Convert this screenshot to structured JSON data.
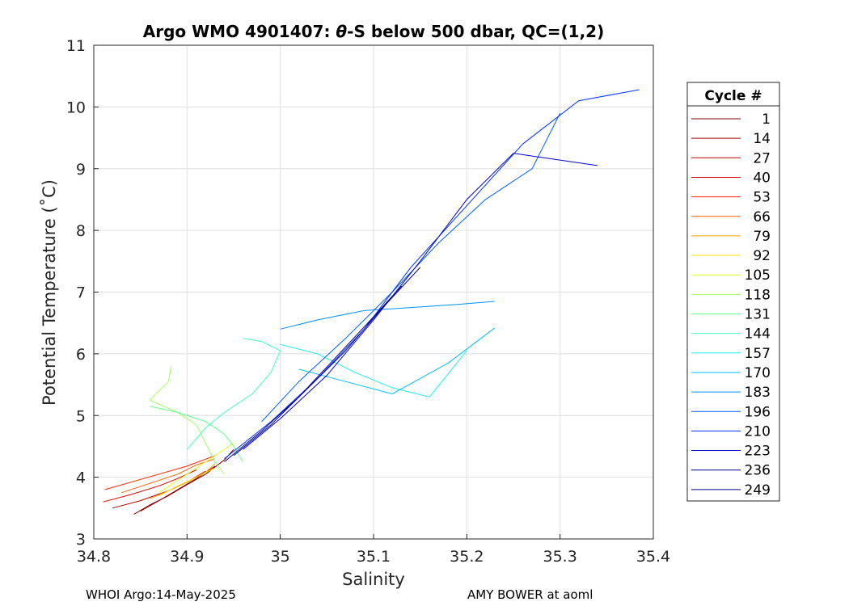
{
  "chart_data": {
    "type": "line",
    "title_left": "Argo WMO 4901407: ",
    "title_theta": "θ",
    "title_right": "-S below 500 dbar,  QC=(1,2)",
    "xlabel": "Salinity",
    "ylabel": "Potential Temperature (˚C)",
    "xlim": [
      34.8,
      35.4
    ],
    "ylim": [
      3,
      11
    ],
    "x_ticks": [
      "34.8",
      "34.9",
      "35",
      "35.1",
      "35.2",
      "35.3",
      "35.4"
    ],
    "y_ticks": [
      "3",
      "4",
      "5",
      "6",
      "7",
      "8",
      "9",
      "10",
      "11"
    ],
    "grid": true,
    "legend_title": "Cycle #",
    "legend_position": "right-outside",
    "legend": [
      {
        "label": "1",
        "color": "#800000"
      },
      {
        "label": "14",
        "color": "#a00000"
      },
      {
        "label": "27",
        "color": "#c00000"
      },
      {
        "label": "40",
        "color": "#e00000"
      },
      {
        "label": "53",
        "color": "#ff2000"
      },
      {
        "label": "66",
        "color": "#ff6000"
      },
      {
        "label": "79",
        "color": "#ffa000"
      },
      {
        "label": "92",
        "color": "#ffe000"
      },
      {
        "label": "105",
        "color": "#e0ff20"
      },
      {
        "label": "118",
        "color": "#a0ff60"
      },
      {
        "label": "131",
        "color": "#60ff90"
      },
      {
        "label": "144",
        "color": "#40ffc0"
      },
      {
        "label": "157",
        "color": "#20f0f0"
      },
      {
        "label": "170",
        "color": "#00c0ff"
      },
      {
        "label": "183",
        "color": "#0090ff"
      },
      {
        "label": "196",
        "color": "#0060ff"
      },
      {
        "label": "210",
        "color": "#0030ff"
      },
      {
        "label": "223",
        "color": "#0000d0"
      },
      {
        "label": "236",
        "color": "#0000a0"
      },
      {
        "label": "249",
        "color": "#000090"
      }
    ],
    "series": [
      {
        "cycle": "1",
        "color": "#800000",
        "points": [
          [
            34.843,
            3.4
          ],
          [
            34.86,
            3.55
          ],
          [
            34.88,
            3.7
          ],
          [
            34.9,
            3.88
          ],
          [
            34.92,
            4.05
          ],
          [
            34.94,
            4.28
          ],
          [
            34.95,
            4.45
          ]
        ]
      },
      {
        "cycle": "14",
        "color": "#a00000",
        "points": [
          [
            34.85,
            3.45
          ],
          [
            34.87,
            3.62
          ],
          [
            34.89,
            3.8
          ],
          [
            34.91,
            3.98
          ],
          [
            34.93,
            4.18
          ]
        ]
      },
      {
        "cycle": "27",
        "color": "#c00000",
        "points": [
          [
            34.82,
            3.5
          ],
          [
            34.85,
            3.62
          ],
          [
            34.88,
            3.78
          ],
          [
            34.9,
            3.92
          ],
          [
            34.92,
            4.1
          ]
        ]
      },
      {
        "cycle": "40",
        "color": "#e00000",
        "points": [
          [
            34.81,
            3.6
          ],
          [
            34.84,
            3.72
          ],
          [
            34.87,
            3.86
          ],
          [
            34.89,
            3.98
          ],
          [
            34.91,
            4.12
          ]
        ]
      },
      {
        "cycle": "53",
        "color": "#ff2000",
        "points": [
          [
            34.812,
            3.8
          ],
          [
            34.84,
            3.92
          ],
          [
            34.87,
            4.05
          ],
          [
            34.9,
            4.18
          ],
          [
            34.93,
            4.35
          ]
        ]
      },
      {
        "cycle": "66",
        "color": "#ff6000",
        "points": [
          [
            34.83,
            3.75
          ],
          [
            34.86,
            3.9
          ],
          [
            34.89,
            4.05
          ],
          [
            34.91,
            4.2
          ],
          [
            34.93,
            4.3
          ]
        ]
      },
      {
        "cycle": "79",
        "color": "#ffa000",
        "points": [
          [
            34.86,
            3.65
          ],
          [
            34.88,
            3.78
          ],
          [
            34.9,
            3.92
          ],
          [
            34.92,
            4.08
          ],
          [
            34.93,
            4.22
          ]
        ]
      },
      {
        "cycle": "92",
        "color": "#ffe000",
        "points": [
          [
            34.87,
            3.7
          ],
          [
            34.89,
            3.86
          ],
          [
            34.91,
            4.0
          ],
          [
            34.93,
            4.15
          ]
        ]
      },
      {
        "cycle": "105",
        "color": "#e0ff20",
        "points": [
          [
            34.87,
            3.75
          ],
          [
            34.89,
            3.95
          ],
          [
            34.91,
            4.15
          ],
          [
            34.93,
            4.35
          ],
          [
            34.95,
            4.55
          ]
        ]
      },
      {
        "cycle": "118",
        "color": "#a0ff60",
        "points": [
          [
            34.883,
            5.8
          ],
          [
            34.88,
            5.55
          ],
          [
            34.87,
            5.4
          ],
          [
            34.86,
            5.25
          ],
          [
            34.89,
            5.05
          ],
          [
            34.91,
            4.85
          ],
          [
            34.92,
            4.55
          ],
          [
            34.93,
            4.25
          ],
          [
            34.94,
            4.05
          ]
        ]
      },
      {
        "cycle": "131",
        "color": "#60ff90",
        "points": [
          [
            34.86,
            5.15
          ],
          [
            34.89,
            5.05
          ],
          [
            34.92,
            4.9
          ],
          [
            34.94,
            4.7
          ],
          [
            34.95,
            4.5
          ],
          [
            34.96,
            4.25
          ]
        ]
      },
      {
        "cycle": "144",
        "color": "#40ffc0",
        "points": [
          [
            34.96,
            6.25
          ],
          [
            34.98,
            6.2
          ],
          [
            35.0,
            6.05
          ],
          [
            34.99,
            5.7
          ],
          [
            34.97,
            5.35
          ],
          [
            34.94,
            5.05
          ],
          [
            34.92,
            4.8
          ],
          [
            34.9,
            4.45
          ]
        ]
      },
      {
        "cycle": "157",
        "color": "#20f0f0",
        "points": [
          [
            35.0,
            6.15
          ],
          [
            35.04,
            6.0
          ],
          [
            35.08,
            5.7
          ],
          [
            35.12,
            5.45
          ],
          [
            35.16,
            5.3
          ],
          [
            35.2,
            6.05
          ]
        ]
      },
      {
        "cycle": "170",
        "color": "#00c0ff",
        "points": [
          [
            35.02,
            5.75
          ],
          [
            35.07,
            5.55
          ],
          [
            35.12,
            5.35
          ],
          [
            35.18,
            5.85
          ],
          [
            35.23,
            6.42
          ]
        ]
      },
      {
        "cycle": "183",
        "color": "#0090ff",
        "points": [
          [
            35.0,
            6.4
          ],
          [
            35.04,
            6.55
          ],
          [
            35.09,
            6.7
          ],
          [
            35.14,
            6.75
          ],
          [
            35.19,
            6.8
          ],
          [
            35.23,
            6.85
          ]
        ]
      },
      {
        "cycle": "196",
        "color": "#0060ff",
        "points": [
          [
            34.98,
            4.9
          ],
          [
            35.02,
            5.55
          ],
          [
            35.07,
            6.25
          ],
          [
            35.12,
            7.0
          ],
          [
            35.17,
            7.8
          ],
          [
            35.22,
            8.5
          ],
          [
            35.27,
            9.0
          ],
          [
            35.3,
            9.9
          ]
        ]
      },
      {
        "cycle": "210",
        "color": "#0030ff",
        "points": [
          [
            34.94,
            4.3
          ],
          [
            34.99,
            4.9
          ],
          [
            35.04,
            5.6
          ],
          [
            35.09,
            6.4
          ],
          [
            35.14,
            7.4
          ],
          [
            35.2,
            8.4
          ],
          [
            35.26,
            9.4
          ],
          [
            35.32,
            10.1
          ],
          [
            35.385,
            10.28
          ]
        ]
      },
      {
        "cycle": "223",
        "color": "#0000d0",
        "points": [
          [
            34.96,
            4.45
          ],
          [
            35.0,
            4.95
          ],
          [
            35.05,
            5.65
          ],
          [
            35.1,
            6.55
          ],
          [
            35.15,
            7.5
          ],
          [
            35.2,
            8.5
          ],
          [
            35.25,
            9.25
          ],
          [
            35.34,
            9.05
          ]
        ]
      },
      {
        "cycle": "236",
        "color": "#0000a0",
        "points": [
          [
            34.95,
            4.35
          ],
          [
            34.99,
            4.85
          ],
          [
            35.03,
            5.45
          ],
          [
            35.07,
            6.05
          ],
          [
            35.11,
            6.75
          ],
          [
            35.15,
            7.4
          ]
        ]
      },
      {
        "cycle": "249",
        "color": "#000090",
        "points": [
          [
            34.94,
            4.25
          ],
          [
            34.98,
            4.75
          ],
          [
            35.02,
            5.3
          ],
          [
            35.06,
            5.95
          ],
          [
            35.1,
            6.6
          ],
          [
            35.13,
            7.1
          ]
        ]
      }
    ]
  },
  "footer": {
    "left": "WHOI Argo:14-May-2025",
    "right": "AMY BOWER at aoml"
  }
}
